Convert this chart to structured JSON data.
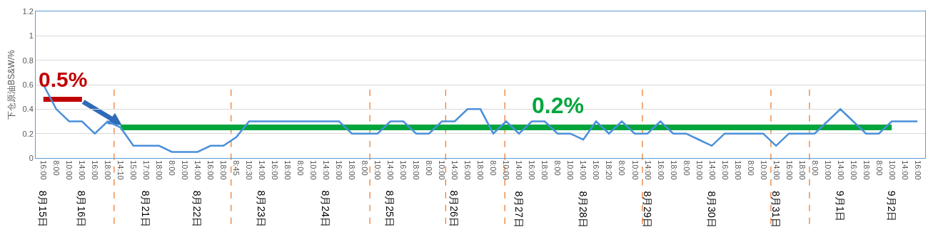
{
  "chart_data": {
    "type": "line",
    "ylabel": "下仓原油BS&W/%",
    "categories": [
      "16:00",
      "8:00",
      "10:00",
      "14:00",
      "16:00",
      "18:00",
      "14:10",
      "15:00",
      "17:00",
      "18:00",
      "8:00",
      "10:00",
      "14:00",
      "16:00",
      "18:00",
      "8:45",
      "10:30",
      "14:00",
      "16:00",
      "18:00",
      "8:00",
      "10:00",
      "14:00",
      "16:00",
      "18:00",
      "8:00",
      "10:00",
      "14:00",
      "16:00",
      "18:00",
      "8:00",
      "10:00",
      "14:00",
      "16:00",
      "18:00",
      "8:00",
      "10:00",
      "14:00",
      "16:00",
      "18:00",
      "8:00",
      "10:00",
      "14:00",
      "16:00",
      "18:20",
      "8:00",
      "10:00",
      "14:00",
      "16:00",
      "18:00",
      "8:00",
      "10:00",
      "14:00",
      "16:00",
      "18:00",
      "8:00",
      "10:00",
      "14:00",
      "16:00",
      "18:00",
      "8:00",
      "10:00",
      "14:00",
      "16:00",
      "18:00",
      "8:00",
      "10:00",
      "14:00",
      "16:00"
    ],
    "series": [
      {
        "color": "#c00000",
        "values": [
          0.48,
          0.48,
          0.48,
          0.48,
          null,
          null,
          null,
          null,
          null,
          null,
          null,
          null,
          null,
          null,
          null,
          null,
          null,
          null,
          null,
          null,
          null,
          null,
          null,
          null,
          null,
          null,
          null,
          null,
          null,
          null,
          null,
          null,
          null,
          null,
          null,
          null,
          null,
          null,
          null,
          null,
          null,
          null,
          null,
          null,
          null,
          null,
          null,
          null,
          null,
          null,
          null,
          null,
          null,
          null,
          null,
          null,
          null,
          null,
          null,
          null,
          null,
          null,
          null,
          null,
          null,
          null,
          null,
          null,
          null
        ]
      },
      {
        "color": "#00a63c",
        "values": [
          null,
          null,
          null,
          null,
          null,
          null,
          0.25,
          0.25,
          0.25,
          0.25,
          0.25,
          0.25,
          0.25,
          0.25,
          0.25,
          0.25,
          0.25,
          0.25,
          0.25,
          0.25,
          0.25,
          0.25,
          0.25,
          0.25,
          0.25,
          0.25,
          0.25,
          0.25,
          0.25,
          0.25,
          0.25,
          0.25,
          0.25,
          0.25,
          0.25,
          0.25,
          0.25,
          0.25,
          0.25,
          0.25,
          0.25,
          0.25,
          0.25,
          0.25,
          0.25,
          0.25,
          0.25,
          0.25,
          0.25,
          0.25,
          0.25,
          0.25,
          0.25,
          0.25,
          0.25,
          0.25,
          0.25,
          0.25,
          0.25,
          0.25,
          0.25,
          0.25,
          0.25,
          0.25,
          0.25,
          0.25,
          0.25,
          null,
          null
        ]
      },
      {
        "color": "#4a90d9",
        "values": [
          0.6,
          0.4,
          0.3,
          0.3,
          0.2,
          0.3,
          0.25,
          0.1,
          0.1,
          0.1,
          0.05,
          0.05,
          0.05,
          0.1,
          0.1,
          0.17,
          0.3,
          0.3,
          0.3,
          0.3,
          0.3,
          0.3,
          0.3,
          0.3,
          0.2,
          0.2,
          0.2,
          0.3,
          0.3,
          0.2,
          0.2,
          0.3,
          0.3,
          0.4,
          0.4,
          0.2,
          0.3,
          0.2,
          0.3,
          0.3,
          0.2,
          0.2,
          0.15,
          0.3,
          0.2,
          0.3,
          0.2,
          0.2,
          0.3,
          0.2,
          0.2,
          0.15,
          0.1,
          0.2,
          0.2,
          0.2,
          0.2,
          0.1,
          0.2,
          0.2,
          0.2,
          0.3,
          0.4,
          0.3,
          0.2,
          0.2,
          0.3,
          0.3,
          0.3
        ]
      }
    ],
    "annotations": [
      "0.5%",
      "0.2%",
      "8月15日",
      "8月16日",
      "8月21日",
      "8月22日",
      "8月23日",
      "8月24日",
      "8月25日",
      "8月26日",
      "8月27日",
      "8月28日",
      "8月29日",
      "8月30日",
      "8月31日",
      "9月1日",
      "9月2日"
    ],
    "ylim": [
      0,
      1.2
    ],
    "yticks": [
      0,
      0.2,
      0.4,
      0.6,
      0.8,
      1,
      1.2
    ],
    "grid": "y",
    "marker": "none",
    "line_style": "solid"
  }
}
